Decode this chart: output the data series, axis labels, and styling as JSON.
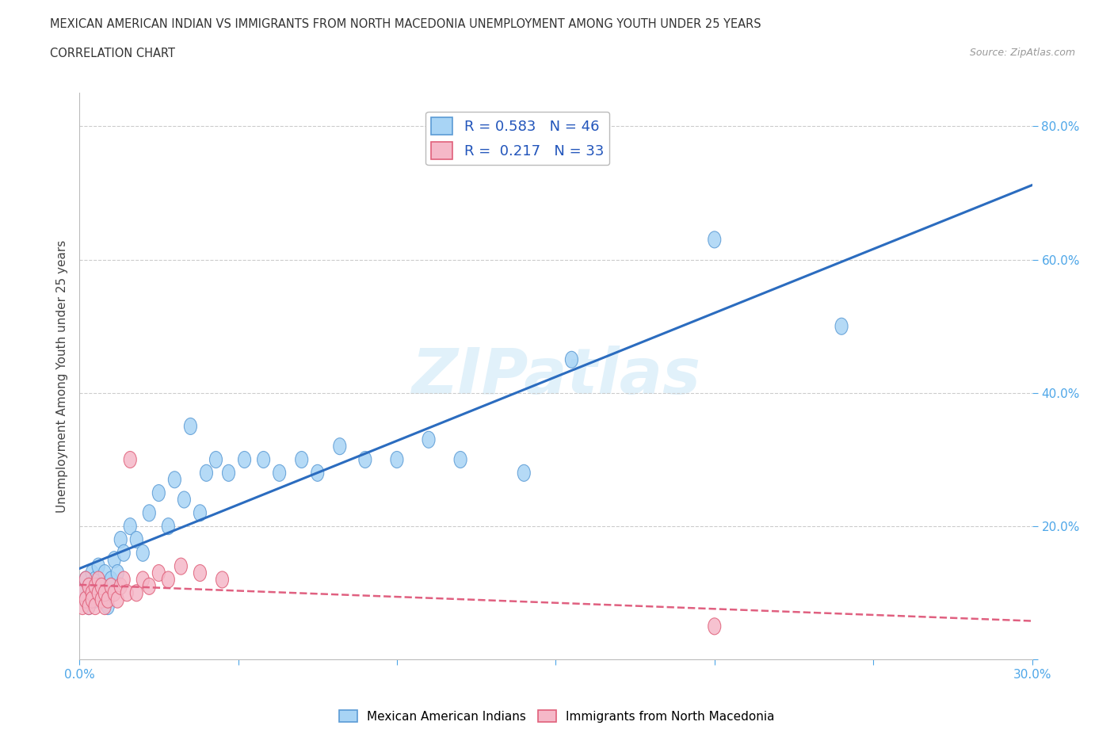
{
  "title_line1": "MEXICAN AMERICAN INDIAN VS IMMIGRANTS FROM NORTH MACEDONIA UNEMPLOYMENT AMONG YOUTH UNDER 25 YEARS",
  "title_line2": "CORRELATION CHART",
  "source": "Source: ZipAtlas.com",
  "ylabel": "Unemployment Among Youth under 25 years",
  "xlim": [
    0.0,
    0.3
  ],
  "ylim": [
    0.0,
    0.85
  ],
  "xticks": [
    0.0,
    0.05,
    0.1,
    0.15,
    0.2,
    0.25,
    0.3
  ],
  "xtick_labels": [
    "0.0%",
    "",
    "",
    "",
    "",
    "",
    "30.0%"
  ],
  "yticks": [
    0.0,
    0.2,
    0.4,
    0.6,
    0.8
  ],
  "ytick_labels": [
    "",
    "20.0%",
    "40.0%",
    "60.0%",
    "80.0%"
  ],
  "blue_R": 0.583,
  "blue_N": 46,
  "pink_R": 0.217,
  "pink_N": 33,
  "blue_color": "#a8d4f5",
  "pink_color": "#f5b8c8",
  "blue_edge_color": "#5b9bd5",
  "pink_edge_color": "#e0607a",
  "blue_line_color": "#2b6cbf",
  "pink_line_color": "#e06080",
  "legend_label_blue": "Mexican American Indians",
  "legend_label_pink": "Immigrants from North Macedonia",
  "watermark": "ZIPatlas",
  "blue_x": [
    0.001,
    0.002,
    0.002,
    0.003,
    0.003,
    0.004,
    0.004,
    0.005,
    0.005,
    0.006,
    0.006,
    0.007,
    0.008,
    0.009,
    0.01,
    0.011,
    0.012,
    0.013,
    0.014,
    0.016,
    0.018,
    0.02,
    0.022,
    0.025,
    0.028,
    0.03,
    0.033,
    0.035,
    0.038,
    0.04,
    0.043,
    0.047,
    0.052,
    0.058,
    0.063,
    0.07,
    0.075,
    0.082,
    0.09,
    0.1,
    0.11,
    0.12,
    0.14,
    0.155,
    0.2,
    0.24
  ],
  "blue_y": [
    0.1,
    0.09,
    0.12,
    0.11,
    0.08,
    0.13,
    0.1,
    0.09,
    0.12,
    0.11,
    0.14,
    0.1,
    0.13,
    0.08,
    0.12,
    0.15,
    0.13,
    0.18,
    0.16,
    0.2,
    0.18,
    0.16,
    0.22,
    0.25,
    0.2,
    0.27,
    0.24,
    0.35,
    0.22,
    0.28,
    0.3,
    0.28,
    0.3,
    0.3,
    0.28,
    0.3,
    0.28,
    0.32,
    0.3,
    0.3,
    0.33,
    0.3,
    0.28,
    0.45,
    0.63,
    0.5
  ],
  "pink_x": [
    0.001,
    0.001,
    0.002,
    0.002,
    0.003,
    0.003,
    0.004,
    0.004,
    0.005,
    0.005,
    0.006,
    0.006,
    0.007,
    0.007,
    0.008,
    0.008,
    0.009,
    0.01,
    0.011,
    0.012,
    0.013,
    0.014,
    0.015,
    0.016,
    0.018,
    0.02,
    0.022,
    0.025,
    0.028,
    0.032,
    0.038,
    0.045,
    0.2
  ],
  "pink_y": [
    0.08,
    0.1,
    0.09,
    0.12,
    0.08,
    0.11,
    0.1,
    0.09,
    0.08,
    0.11,
    0.1,
    0.12,
    0.09,
    0.11,
    0.08,
    0.1,
    0.09,
    0.11,
    0.1,
    0.09,
    0.11,
    0.12,
    0.1,
    0.3,
    0.1,
    0.12,
    0.11,
    0.13,
    0.12,
    0.14,
    0.13,
    0.12,
    0.05
  ]
}
